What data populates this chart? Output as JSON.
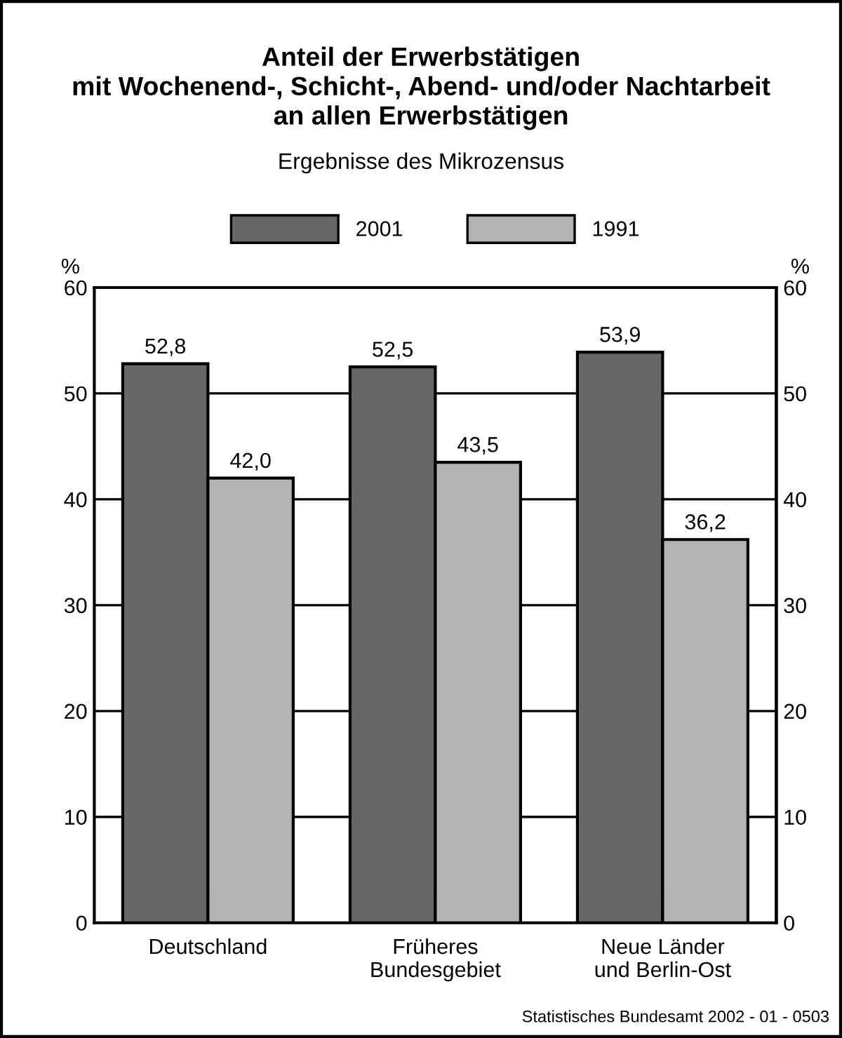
{
  "chart_data": {
    "type": "bar",
    "title": "Anteil der Erwerbstätigen\nmit Wochenend-, Schicht-, Abend- und/oder Nachtarbeit\nan allen Erwerbstätigen",
    "subtitle": "Ergebnisse des Mikrozensus",
    "ylabel": "%",
    "y2label": "%",
    "categories": [
      "Deutschland",
      "Früheres\nBundesgebiet",
      "Neue Länder\nund Berlin-Ost"
    ],
    "series": [
      {
        "name": "2001",
        "color": "#666666",
        "values": [
          52.8,
          52.5,
          53.9
        ],
        "value_labels": [
          "52,8",
          "52,5",
          "53,9"
        ]
      },
      {
        "name": "1991",
        "color": "#b3b3b3",
        "values": [
          42.0,
          43.5,
          36.2
        ],
        "value_labels": [
          "42,0",
          "43,5",
          "36,2"
        ]
      }
    ],
    "ylim": [
      0,
      60
    ],
    "yticks": [
      0,
      10,
      20,
      30,
      40,
      50,
      60
    ],
    "y2lim": [
      0,
      60
    ],
    "y2ticks": [
      0,
      10,
      20,
      30,
      40,
      50,
      60
    ],
    "grid": "y",
    "legend": "top",
    "annotations": [
      "Statistisches Bundesamt 2002 - 01 - 0503"
    ]
  }
}
